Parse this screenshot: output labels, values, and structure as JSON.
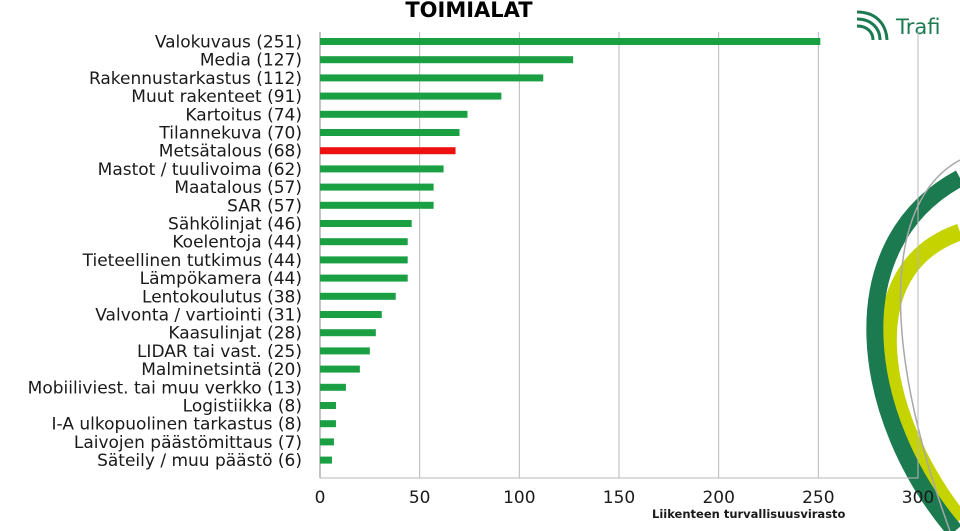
{
  "brand": {
    "name": "Trafi",
    "footer": "Liikenteen turvallisuusvirasto",
    "colors": {
      "dark_green": "#1b7a4f",
      "lime": "#c5d300",
      "grey_line": "#a8a8a8"
    },
    "icon": "trafi-logo-icon"
  },
  "chart_data": {
    "type": "bar",
    "orientation": "horizontal",
    "title": "TOIMIALAT",
    "xlim": [
      0,
      300
    ],
    "xticks": [
      0,
      50,
      100,
      150,
      200,
      250,
      300
    ],
    "grid": "vertical",
    "colors": {
      "default": "#1aa043",
      "highlight": "#ee1111"
    },
    "categories": [
      "Valokuvaus (251)",
      "Media (127)",
      "Rakennustarkastus (112)",
      "Muut rakenteet (91)",
      "Kartoitus (74)",
      "Tilannekuva (70)",
      "Metsätalous (68)",
      "Mastot / tuulivoima (62)",
      "Maatalous (57)",
      "SAR (57)",
      "Sähkölinjat (46)",
      "Koelentoja (44)",
      "Tieteellinen tutkimus (44)",
      "Lämpökamera (44)",
      "Lentokoulutus (38)",
      "Valvonta / vartiointi (31)",
      "Kaasulinjat (28)",
      "LIDAR tai vast. (25)",
      "Malminetsintä (20)",
      "Mobiiliviest. tai muu  verkko (13)",
      "Logistiikka (8)",
      "I-A ulkopuolinen tarkastus  (8)",
      "Laivojen päästömittaus (7)",
      "Säteily / muu päästö (6)"
    ],
    "values": [
      251,
      127,
      112,
      91,
      74,
      70,
      68,
      62,
      57,
      57,
      46,
      44,
      44,
      44,
      38,
      31,
      28,
      25,
      20,
      13,
      8,
      8,
      7,
      6
    ],
    "highlight_index": 6
  }
}
